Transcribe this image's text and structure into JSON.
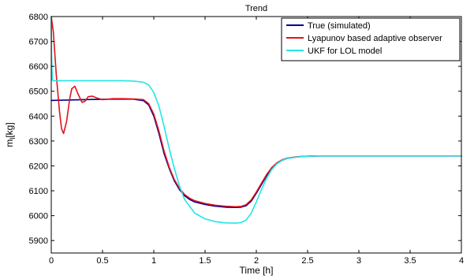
{
  "chart_data": {
    "type": "line",
    "title": "Trend",
    "xlabel": "Time [h]",
    "ylabel": "m",
    "ylabel_subscript": "l",
    "ylabel_unit": "[kg]",
    "xlim": [
      0,
      4
    ],
    "ylim": [
      5850,
      6800
    ],
    "xticks": [
      0,
      0.5,
      1,
      1.5,
      2,
      2.5,
      3,
      3.5,
      4
    ],
    "xtick_labels": [
      "0",
      "0.5",
      "1",
      "1.5",
      "2",
      "2.5",
      "3",
      "3.5",
      "4"
    ],
    "yticks": [
      5900,
      6000,
      6100,
      6200,
      6300,
      6400,
      6500,
      6600,
      6700,
      6800
    ],
    "ytick_labels": [
      "5900",
      "6000",
      "6100",
      "6200",
      "6300",
      "6400",
      "6500",
      "6600",
      "6700",
      "6800"
    ],
    "grid": false,
    "legend_position": "top-right",
    "series": [
      {
        "name": "True (simulated)",
        "color": "#00008b",
        "x": [
          0,
          0.2,
          0.4,
          0.6,
          0.8,
          0.9,
          0.95,
          1.0,
          1.05,
          1.1,
          1.15,
          1.2,
          1.25,
          1.3,
          1.35,
          1.4,
          1.5,
          1.6,
          1.7,
          1.8,
          1.85,
          1.9,
          1.95,
          2.0,
          2.05,
          2.1,
          2.15,
          2.2,
          2.25,
          2.3,
          2.4,
          2.5,
          2.6,
          2.8,
          3.0,
          3.5,
          4.0
        ],
        "y": [
          6463,
          6465,
          6467,
          6468,
          6468,
          6462,
          6445,
          6400,
          6330,
          6250,
          6190,
          6140,
          6105,
          6080,
          6065,
          6055,
          6045,
          6038,
          6034,
          6033,
          6034,
          6040,
          6058,
          6090,
          6125,
          6160,
          6190,
          6210,
          6222,
          6230,
          6236,
          6239,
          6240,
          6240,
          6240,
          6240,
          6240
        ]
      },
      {
        "name": "Lyapunov based adaptive observer",
        "color": "#e0141e",
        "x": [
          0,
          0.02,
          0.05,
          0.08,
          0.1,
          0.12,
          0.15,
          0.18,
          0.2,
          0.23,
          0.26,
          0.3,
          0.33,
          0.36,
          0.4,
          0.45,
          0.5,
          0.55,
          0.6,
          0.7,
          0.8,
          0.9,
          0.95,
          1.0,
          1.05,
          1.1,
          1.15,
          1.2,
          1.25,
          1.3,
          1.35,
          1.4,
          1.5,
          1.6,
          1.7,
          1.8,
          1.85,
          1.9,
          1.95,
          2.0,
          2.05,
          2.1,
          2.15,
          2.2,
          2.25,
          2.3,
          2.4,
          2.5,
          2.6,
          2.8,
          3.0,
          3.5,
          4.0
        ],
        "y": [
          6800,
          6740,
          6560,
          6420,
          6350,
          6330,
          6380,
          6470,
          6510,
          6520,
          6490,
          6455,
          6460,
          6478,
          6480,
          6472,
          6466,
          6468,
          6470,
          6470,
          6469,
          6466,
          6450,
          6408,
          6340,
          6260,
          6195,
          6145,
          6110,
          6085,
          6070,
          6060,
          6049,
          6042,
          6038,
          6036,
          6037,
          6044,
          6063,
          6095,
          6130,
          6165,
          6193,
          6212,
          6224,
          6231,
          6237,
          6239,
          6240,
          6240,
          6240,
          6240,
          6240
        ]
      },
      {
        "name": "UKF for LOL model",
        "color": "#22e6e6",
        "x": [
          0,
          0.003,
          0.01,
          0.02,
          0.05,
          0.1,
          0.3,
          0.5,
          0.7,
          0.8,
          0.9,
          0.95,
          1.0,
          1.05,
          1.1,
          1.15,
          1.2,
          1.25,
          1.3,
          1.4,
          1.5,
          1.6,
          1.7,
          1.8,
          1.85,
          1.9,
          1.95,
          2.0,
          2.05,
          2.1,
          2.15,
          2.2,
          2.25,
          2.3,
          2.4,
          2.5,
          2.6,
          2.8,
          3.0,
          3.5,
          4.0
        ],
        "y": [
          6800,
          6650,
          6545,
          6542,
          6542,
          6542,
          6542,
          6542,
          6542,
          6541,
          6536,
          6525,
          6495,
          6440,
          6360,
          6270,
          6190,
          6120,
          6065,
          6010,
          5987,
          5976,
          5971,
          5970,
          5972,
          5982,
          6010,
          6055,
          6105,
          6150,
          6185,
          6208,
          6222,
          6230,
          6236,
          6239,
          6240,
          6240,
          6240,
          6240,
          6240
        ]
      }
    ]
  }
}
